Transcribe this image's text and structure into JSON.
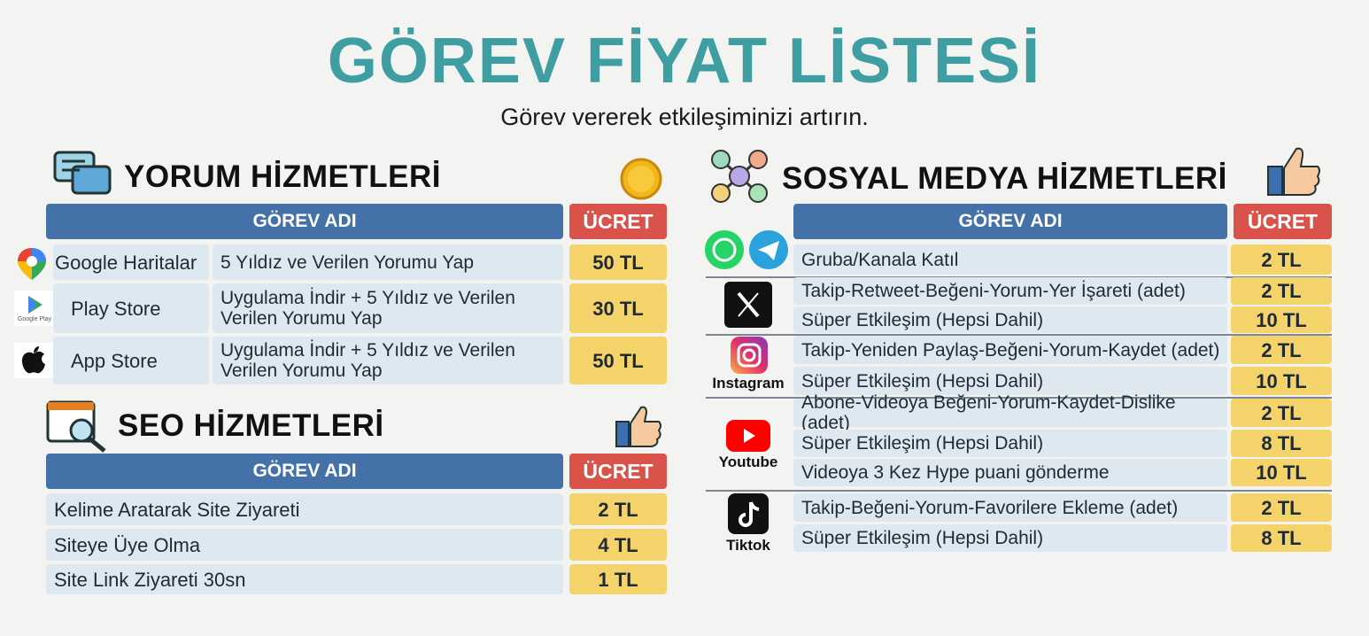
{
  "header": {
    "title": "GÖREV FİYAT LİSTESİ",
    "subtitle": "Görev vererek etkileşiminizi artırın."
  },
  "yorum": {
    "title": "YORUM HİZMETLERİ",
    "columns": [
      "GÖREV ADI",
      "ÜCRET"
    ],
    "rows": [
      {
        "platform": "Google Haritalar",
        "task": "5 Yıldız ve Verilen Yorumu Yap",
        "price": "50 TL"
      },
      {
        "platform": "Play Store",
        "icon_text": "Google Play",
        "task": "Uygulama İndir + 5 Yıldız ve Verilen Verilen Yorumu Yap",
        "price": "30 TL"
      },
      {
        "platform": "App Store",
        "task": "Uygulama İndir + 5 Yıldız ve Verilen Verilen Yorumu Yap",
        "price": "50 TL"
      }
    ]
  },
  "seo": {
    "title": "SEO HİZMETLERİ",
    "columns": [
      "GÖREV ADI",
      "ÜCRET"
    ],
    "rows": [
      {
        "task": "Kelime Aratarak Site Ziyareti",
        "price": "2 TL"
      },
      {
        "task": "Siteye Üye Olma",
        "price": "4 TL"
      },
      {
        "task": "Site Link Ziyareti 30sn",
        "price": "1 TL"
      }
    ]
  },
  "sosyal": {
    "title": "SOSYAL MEDYA HİZMETLERİ",
    "columns": [
      "GÖREV ADI",
      "ÜCRET"
    ],
    "groups": [
      {
        "rows": [
          {
            "task": "Gruba/Kanala Katıl",
            "price": "2 TL"
          }
        ]
      },
      {
        "rows": [
          {
            "task": "Takip-Retweet-Beğeni-Yorum-Yer İşareti (adet)",
            "price": "2 TL"
          },
          {
            "task": "Süper Etkileşim (Hepsi Dahil)",
            "price": "10 TL"
          }
        ]
      },
      {
        "label": "Instagram",
        "rows": [
          {
            "task": "Takip-Yeniden Paylaş-Beğeni-Yorum-Kaydet (adet)",
            "price": "2 TL"
          },
          {
            "task": "Süper Etkileşim (Hepsi Dahil)",
            "price": "10 TL"
          }
        ]
      },
      {
        "label": "Youtube",
        "rows": [
          {
            "task": "Abone-Videoya Beğeni-Yorum-Kaydet-Dislike (adet)",
            "price": "2 TL"
          },
          {
            "task": "Süper Etkileşim (Hepsi Dahil)",
            "price": "8 TL"
          },
          {
            "task": "Videoya 3 Kez Hype puani gönderme",
            "price": "10 TL"
          }
        ]
      },
      {
        "label": "Tiktok",
        "rows": [
          {
            "task": "Takip-Beğeni-Yorum-Favorilere Ekleme (adet)",
            "price": "2 TL"
          },
          {
            "task": "Süper Etkileşim (Hepsi Dahil)",
            "price": "8 TL"
          }
        ]
      }
    ]
  }
}
